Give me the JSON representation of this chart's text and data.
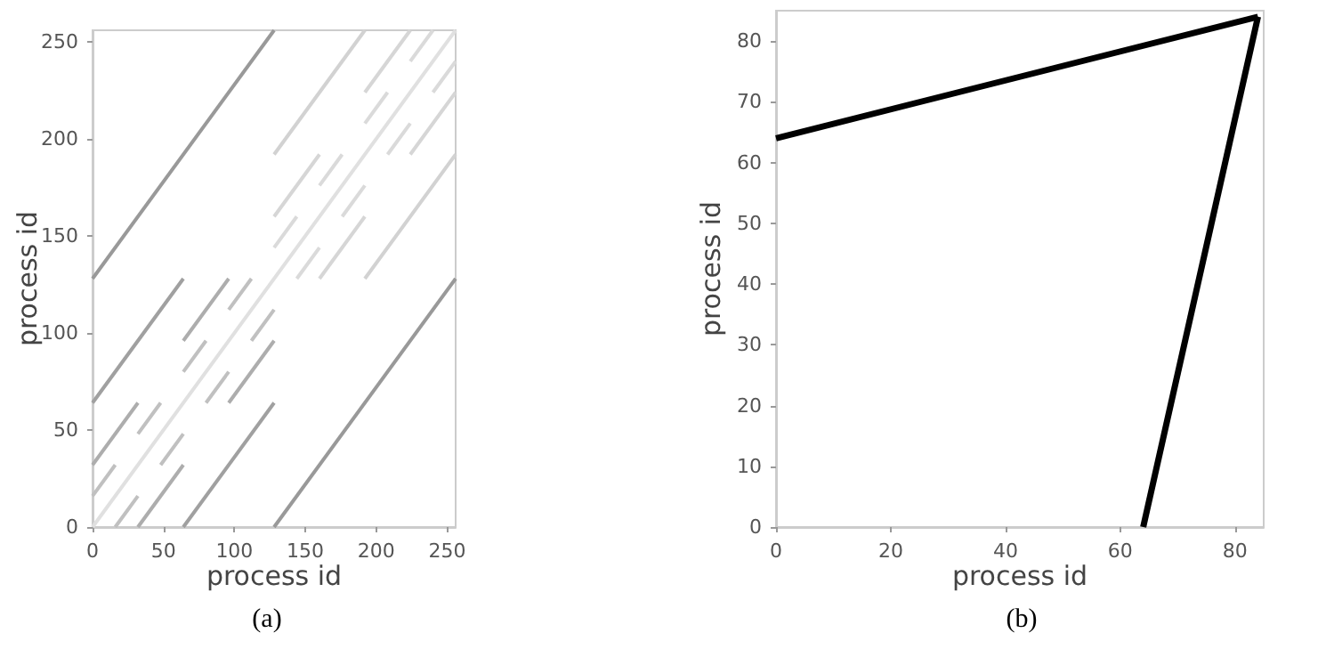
{
  "chart_data": [
    {
      "type": "line",
      "xlabel": "process id",
      "ylabel": "process id",
      "annotations": [
        "(a)"
      ],
      "xlim": [
        0,
        256
      ],
      "ylim": [
        0,
        256
      ],
      "xticks": [
        0,
        50,
        100,
        150,
        200,
        250
      ],
      "yticks": [
        0,
        50,
        100,
        150,
        200,
        250
      ],
      "grid": false,
      "marker": "none",
      "line_style": "solid",
      "series": [
        {
          "color": "#e0e0e0",
          "x": [
            0,
            256
          ],
          "values": [
            0,
            256
          ]
        },
        {
          "color": "#dadada",
          "x": [
            128,
            144
          ],
          "values": [
            144,
            160
          ]
        },
        {
          "color": "#dadada",
          "x": [
            144,
            160
          ],
          "values": [
            128,
            144
          ]
        },
        {
          "color": "#dadada",
          "x": [
            160,
            176
          ],
          "values": [
            176,
            192
          ]
        },
        {
          "color": "#dadada",
          "x": [
            176,
            192
          ],
          "values": [
            160,
            176
          ]
        },
        {
          "color": "#dadada",
          "x": [
            192,
            208
          ],
          "values": [
            208,
            224
          ]
        },
        {
          "color": "#dadada",
          "x": [
            208,
            224
          ],
          "values": [
            192,
            208
          ]
        },
        {
          "color": "#dadada",
          "x": [
            224,
            240
          ],
          "values": [
            240,
            256
          ]
        },
        {
          "color": "#dadada",
          "x": [
            240,
            256
          ],
          "values": [
            224,
            240
          ]
        },
        {
          "color": "#c0c0c0",
          "x": [
            0,
            16
          ],
          "values": [
            16,
            32
          ]
        },
        {
          "color": "#c0c0c0",
          "x": [
            16,
            32
          ],
          "values": [
            0,
            16
          ]
        },
        {
          "color": "#c0c0c0",
          "x": [
            32,
            48
          ],
          "values": [
            48,
            64
          ]
        },
        {
          "color": "#c0c0c0",
          "x": [
            48,
            64
          ],
          "values": [
            32,
            48
          ]
        },
        {
          "color": "#c0c0c0",
          "x": [
            64,
            80
          ],
          "values": [
            80,
            96
          ]
        },
        {
          "color": "#c0c0c0",
          "x": [
            80,
            96
          ],
          "values": [
            64,
            80
          ]
        },
        {
          "color": "#c0c0c0",
          "x": [
            96,
            112
          ],
          "values": [
            112,
            128
          ]
        },
        {
          "color": "#c0c0c0",
          "x": [
            112,
            128
          ],
          "values": [
            96,
            112
          ]
        },
        {
          "color": "#d6d6d6",
          "x": [
            128,
            160
          ],
          "values": [
            160,
            192
          ]
        },
        {
          "color": "#d6d6d6",
          "x": [
            160,
            192
          ],
          "values": [
            128,
            160
          ]
        },
        {
          "color": "#d6d6d6",
          "x": [
            192,
            224
          ],
          "values": [
            224,
            256
          ]
        },
        {
          "color": "#d6d6d6",
          "x": [
            224,
            256
          ],
          "values": [
            192,
            224
          ]
        },
        {
          "color": "#adadad",
          "x": [
            0,
            32
          ],
          "values": [
            32,
            64
          ]
        },
        {
          "color": "#adadad",
          "x": [
            32,
            64
          ],
          "values": [
            0,
            32
          ]
        },
        {
          "color": "#adadad",
          "x": [
            64,
            96
          ],
          "values": [
            96,
            128
          ]
        },
        {
          "color": "#adadad",
          "x": [
            96,
            128
          ],
          "values": [
            64,
            96
          ]
        },
        {
          "color": "#d2d2d2",
          "x": [
            128,
            192
          ],
          "values": [
            192,
            256
          ]
        },
        {
          "color": "#d2d2d2",
          "x": [
            192,
            256
          ],
          "values": [
            128,
            192
          ]
        },
        {
          "color": "#a0a0a0",
          "x": [
            0,
            64
          ],
          "values": [
            64,
            128
          ]
        },
        {
          "color": "#a0a0a0",
          "x": [
            64,
            128
          ],
          "values": [
            0,
            64
          ]
        },
        {
          "color": "#999999",
          "x": [
            0,
            128
          ],
          "values": [
            128,
            256
          ]
        },
        {
          "color": "#999999",
          "x": [
            128,
            256
          ],
          "values": [
            0,
            128
          ]
        }
      ]
    },
    {
      "type": "line",
      "xlabel": "process id",
      "ylabel": "process id",
      "annotations": [
        "(b)"
      ],
      "xlim": [
        0,
        85
      ],
      "ylim": [
        0,
        85
      ],
      "xticks": [
        0,
        20,
        40,
        60,
        80
      ],
      "yticks": [
        0,
        10,
        20,
        30,
        40,
        50,
        60,
        70,
        80
      ],
      "grid": false,
      "marker": "none",
      "line_style": "solid",
      "series": [
        {
          "color": "#000000",
          "x": [
            0,
            84
          ],
          "values": [
            64,
            84
          ]
        },
        {
          "color": "#000000",
          "x": [
            64,
            84
          ],
          "values": [
            0,
            84
          ]
        }
      ]
    }
  ]
}
